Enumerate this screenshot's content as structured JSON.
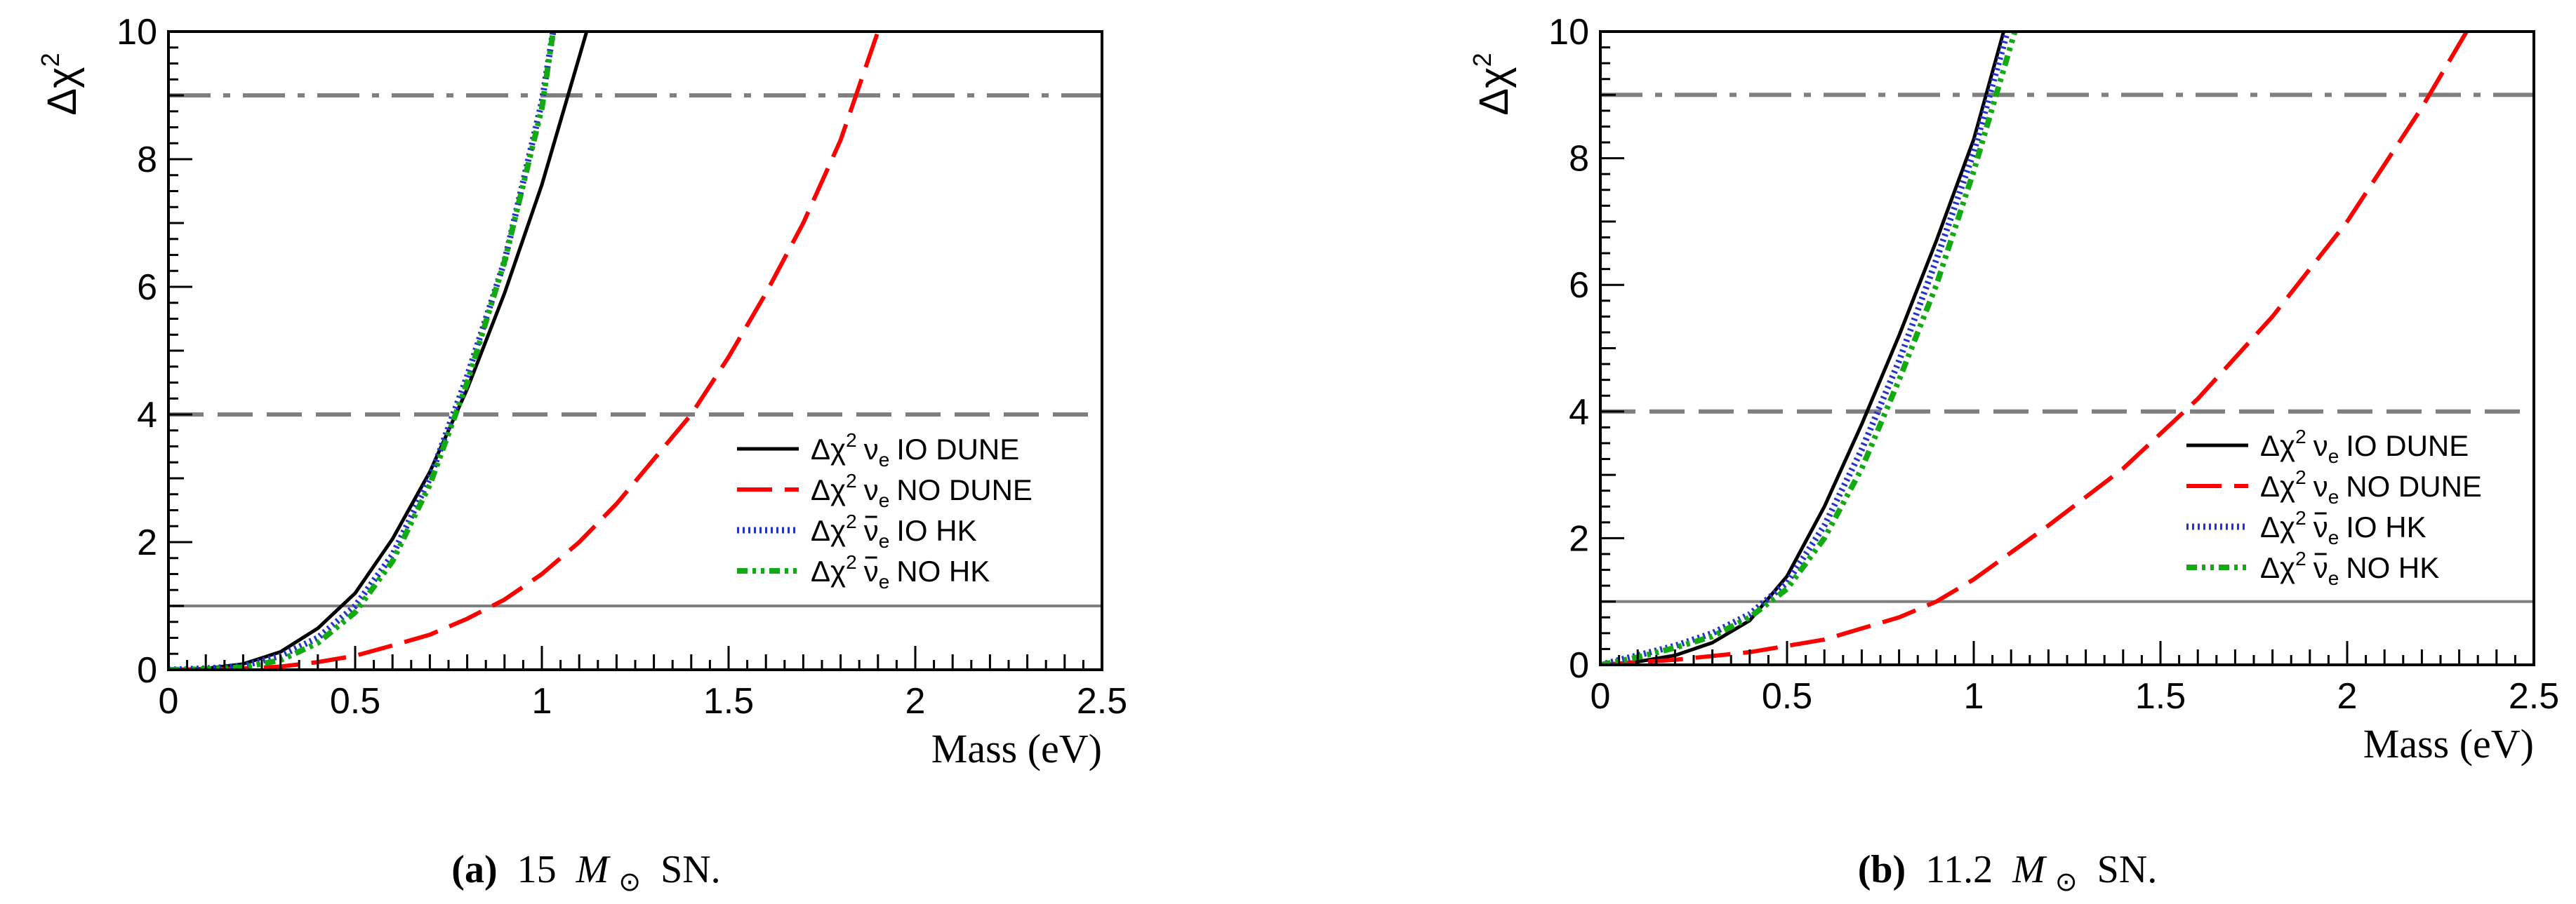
{
  "figure": {
    "captions": [
      {
        "label": "(a)",
        "text_before": "15",
        "symbol": "M",
        "subscript": "⊙",
        "text_after": "SN."
      },
      {
        "label": "(b)",
        "text_before": "11.2",
        "symbol": "M",
        "subscript": "⊙",
        "text_after": "SN."
      }
    ]
  },
  "colors": {
    "io_dune": "#000000",
    "no_dune": "#ff0000",
    "io_hk": "#2233cc",
    "no_hk": "#11aa11",
    "reference": "#7f7f7f"
  },
  "chart_data": [
    {
      "type": "line",
      "title": "",
      "xlabel": "Mass (eV)",
      "ylabel": "Δχ²",
      "ylabel_base": "Δχ",
      "ylabel_exp": "2",
      "xlim": [
        0,
        2.5
      ],
      "ylim": [
        0,
        10
      ],
      "xticks": [
        0,
        0.5,
        1,
        1.5,
        2,
        2.5
      ],
      "xtick_labels": [
        "0",
        "0.5",
        "1",
        "1.5",
        "2",
        "2.5"
      ],
      "yticks": [
        0,
        2,
        4,
        6,
        8,
        10
      ],
      "ytick_labels": [
        "0",
        "2",
        "4",
        "6",
        "8",
        "10"
      ],
      "legend_position": "right-middle",
      "reference_lines": [
        {
          "y": 1,
          "style": "solid"
        },
        {
          "y": 4,
          "style": "dashed"
        },
        {
          "y": 9,
          "style": "dash-dot"
        }
      ],
      "series": [
        {
          "key": "io_dune",
          "name": "Δχ² νe IO DUNE",
          "legend": {
            "prefix": "Δχ",
            "exp": "2",
            "nu": "ν",
            "bar": false,
            "sub": "e",
            "suffix": "IO DUNE"
          },
          "style": "solid",
          "x": [
            0,
            0.1,
            0.2,
            0.3,
            0.4,
            0.5,
            0.6,
            0.7,
            0.8,
            0.9,
            1.0,
            1.05,
            1.1,
            1.12
          ],
          "y": [
            0,
            0.02,
            0.09,
            0.28,
            0.65,
            1.2,
            2.05,
            3.1,
            4.4,
            5.9,
            7.6,
            8.6,
            9.6,
            10
          ]
        },
        {
          "key": "no_dune",
          "name": "Δχ² νe NO DUNE",
          "legend": {
            "prefix": "Δχ",
            "exp": "2",
            "nu": "ν",
            "bar": false,
            "sub": "e",
            "suffix": "NO DUNE"
          },
          "style": "long-dash",
          "x": [
            0,
            0.2,
            0.3,
            0.4,
            0.5,
            0.6,
            0.7,
            0.8,
            0.9,
            1.0,
            1.1,
            1.2,
            1.3,
            1.4,
            1.5,
            1.6,
            1.7,
            1.8,
            1.9
          ],
          "y": [
            0,
            0.02,
            0.05,
            0.12,
            0.22,
            0.38,
            0.55,
            0.8,
            1.1,
            1.5,
            2.0,
            2.6,
            3.3,
            4.0,
            4.9,
            5.9,
            7.0,
            8.3,
            10
          ]
        },
        {
          "key": "io_hk",
          "name": "Δχ² ν̄e IO HK",
          "legend": {
            "prefix": "Δχ",
            "exp": "2",
            "nu": "ν",
            "bar": true,
            "sub": "e",
            "suffix": "IO HK"
          },
          "style": "dotted",
          "x": [
            0,
            0.1,
            0.2,
            0.3,
            0.4,
            0.5,
            0.6,
            0.7,
            0.8,
            0.9,
            1.0,
            1.03
          ],
          "y": [
            0,
            0.02,
            0.06,
            0.22,
            0.5,
            1.0,
            1.8,
            3.0,
            4.6,
            6.4,
            8.9,
            10
          ]
        },
        {
          "key": "no_hk",
          "name": "Δχ² ν̄e NO HK",
          "legend": {
            "prefix": "Δχ",
            "exp": "2",
            "nu": "ν",
            "bar": true,
            "sub": "e",
            "suffix": "NO HK"
          },
          "style": "dash-dot-dot",
          "x": [
            0,
            0.1,
            0.2,
            0.3,
            0.4,
            0.5,
            0.6,
            0.7,
            0.8,
            0.9,
            1.0,
            1.03
          ],
          "y": [
            0,
            0.01,
            0.04,
            0.15,
            0.42,
            0.9,
            1.7,
            2.9,
            4.5,
            6.4,
            8.8,
            10
          ]
        }
      ]
    },
    {
      "type": "line",
      "title": "",
      "xlabel": "Mass (eV)",
      "ylabel": "Δχ²",
      "ylabel_base": "Δχ",
      "ylabel_exp": "2",
      "xlim": [
        0,
        2.5
      ],
      "ylim": [
        0,
        10
      ],
      "xticks": [
        0,
        0.5,
        1,
        1.5,
        2,
        2.5
      ],
      "xtick_labels": [
        "0",
        "0.5",
        "1",
        "1.5",
        "2",
        "2.5"
      ],
      "yticks": [
        0,
        2,
        4,
        6,
        8,
        10
      ],
      "ytick_labels": [
        "0",
        "2",
        "4",
        "6",
        "8",
        "10"
      ],
      "legend_position": "right-middle",
      "reference_lines": [
        {
          "y": 1,
          "style": "solid"
        },
        {
          "y": 4,
          "style": "dashed"
        },
        {
          "y": 9,
          "style": "dash-dot"
        }
      ],
      "series": [
        {
          "key": "io_dune",
          "name": "Δχ² νe IO DUNE",
          "legend": {
            "prefix": "Δχ",
            "exp": "2",
            "nu": "ν",
            "bar": false,
            "sub": "e",
            "suffix": "IO DUNE"
          },
          "style": "solid",
          "x": [
            0,
            0.1,
            0.2,
            0.3,
            0.4,
            0.5,
            0.6,
            0.7,
            0.8,
            0.9,
            1.0,
            1.08
          ],
          "y": [
            0,
            0.05,
            0.15,
            0.35,
            0.7,
            1.4,
            2.5,
            3.8,
            5.2,
            6.7,
            8.3,
            10
          ]
        },
        {
          "key": "no_dune",
          "name": "Δχ² νe NO DUNE",
          "legend": {
            "prefix": "Δχ",
            "exp": "2",
            "nu": "ν",
            "bar": false,
            "sub": "e",
            "suffix": "NO DUNE"
          },
          "style": "long-dash",
          "x": [
            0,
            0.2,
            0.4,
            0.6,
            0.8,
            0.9,
            1.0,
            1.2,
            1.4,
            1.6,
            1.8,
            2.0,
            2.2,
            2.32
          ],
          "y": [
            0,
            0.08,
            0.2,
            0.4,
            0.75,
            1.0,
            1.35,
            2.2,
            3.1,
            4.2,
            5.5,
            7.0,
            8.8,
            10
          ]
        },
        {
          "key": "io_hk",
          "name": "Δχ² ν̄e IO HK",
          "legend": {
            "prefix": "Δχ",
            "exp": "2",
            "nu": "ν",
            "bar": true,
            "sub": "e",
            "suffix": "IO HK"
          },
          "style": "dotted",
          "x": [
            0,
            0.1,
            0.2,
            0.3,
            0.4,
            0.5,
            0.6,
            0.7,
            0.8,
            0.9,
            1.0,
            1.09
          ],
          "y": [
            0,
            0.15,
            0.3,
            0.5,
            0.8,
            1.3,
            2.2,
            3.4,
            4.8,
            6.4,
            8.1,
            10
          ]
        },
        {
          "key": "no_hk",
          "name": "Δχ² ν̄e NO HK",
          "legend": {
            "prefix": "Δχ",
            "exp": "2",
            "nu": "ν",
            "bar": true,
            "sub": "e",
            "suffix": "NO HK"
          },
          "style": "dash-dot-dot",
          "x": [
            0,
            0.1,
            0.2,
            0.3,
            0.4,
            0.5,
            0.6,
            0.7,
            0.8,
            0.9,
            1.0,
            1.11
          ],
          "y": [
            0,
            0.12,
            0.27,
            0.45,
            0.75,
            1.2,
            2.0,
            3.1,
            4.5,
            6.0,
            7.8,
            10
          ]
        }
      ]
    }
  ]
}
